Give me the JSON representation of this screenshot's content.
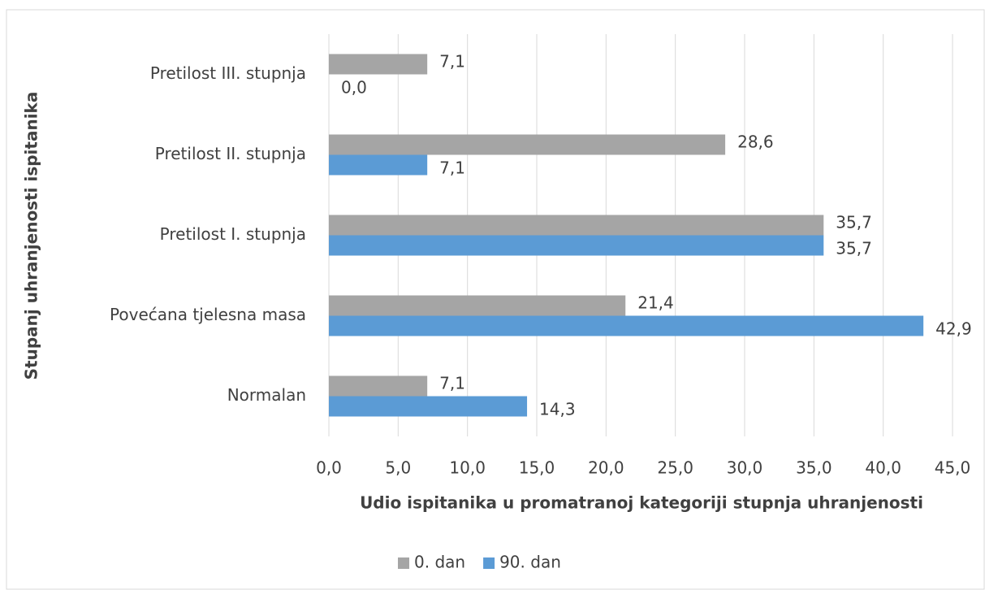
{
  "chart_data": {
    "type": "bar",
    "orientation": "horizontal",
    "y_axis_title": "Stupanj uhranjenosti ispitanika",
    "x_axis_title": "Udio ispitanika u promatranoj kategoriji stupnja uhranjenosti",
    "categories": [
      "Normalan",
      "Povećana tjelesna masa",
      "Pretilost I. stupnja",
      "Pretilost II. stupnja",
      "Pretilost III. stupnja"
    ],
    "series": [
      {
        "name": "0. dan",
        "color": "#a5a5a5",
        "values": [
          7.1,
          21.4,
          35.7,
          28.6,
          7.1
        ],
        "value_labels": [
          "7,1",
          "21,4",
          "35,7",
          "28,6",
          "7,1"
        ]
      },
      {
        "name": "90. dan",
        "color": "#5b9bd5",
        "values": [
          14.3,
          42.9,
          35.7,
          7.1,
          0.0
        ],
        "value_labels": [
          "14,3",
          "42,9",
          "35,7",
          "7,1",
          "0,0"
        ]
      }
    ],
    "xlim": [
      0,
      45
    ],
    "xticks": [
      {
        "value": 0,
        "label": "0,0"
      },
      {
        "value": 5,
        "label": "5,0"
      },
      {
        "value": 10,
        "label": "10,0"
      },
      {
        "value": 15,
        "label": "15,0"
      },
      {
        "value": 20,
        "label": "20,0"
      },
      {
        "value": 25,
        "label": "25,0"
      },
      {
        "value": 30,
        "label": "30,0"
      },
      {
        "value": 35,
        "label": "35,0"
      },
      {
        "value": 40,
        "label": "40,0"
      },
      {
        "value": 45,
        "label": "45,0"
      }
    ],
    "grid": true,
    "legend": "bottom"
  }
}
